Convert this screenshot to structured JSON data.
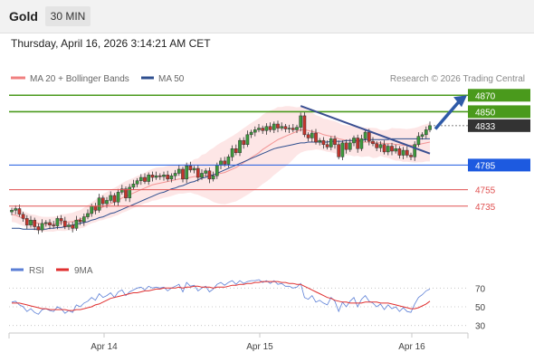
{
  "header": {
    "instrument": "Gold",
    "timeframe": "30 MIN",
    "datetime": "Thursday, April 16, 2026 3:14:21 AM CET"
  },
  "legend": {
    "ma20": "MA 20 + Bollinger Bands",
    "ma50": "MA 50",
    "research": "Research © 2026 Trading Central",
    "rsi": "RSI",
    "ma9": "9MA"
  },
  "colors": {
    "up_candle": "#3c9a3c",
    "down_candle": "#c4352c",
    "ma20": "#f08080",
    "ma50": "#2f4f8f",
    "bollinger_fill": "#fde3e3",
    "resistance": "#4a9a1c",
    "pivot": "#1d5ae0",
    "support": "#e05252",
    "last_price_tag": "#333333",
    "trendline": "#3a4f91",
    "rsi": "#5b7fd6",
    "rsi_ma9": "#e03030"
  },
  "chart_data": [
    {
      "type": "candlestick",
      "x_tick_labels": [
        "Apr 14",
        "Apr 15",
        "Apr 16"
      ],
      "y_price_tags": [
        4870,
        4850,
        4833,
        4785,
        4755,
        4735
      ],
      "levels": [
        {
          "label": "4870",
          "value": 4870,
          "kind": "resistance"
        },
        {
          "label": "4850",
          "value": 4850,
          "kind": "resistance"
        },
        {
          "label": "4833",
          "value": 4833,
          "kind": "last-price"
        },
        {
          "label": "4785",
          "value": 4785,
          "kind": "pivot"
        },
        {
          "label": "4755",
          "value": 4755,
          "kind": "support"
        },
        {
          "label": "4735",
          "value": 4735,
          "kind": "support"
        }
      ],
      "ylim": [
        4640,
        4878
      ],
      "close": [
        4730,
        4732,
        4725,
        4720,
        4712,
        4718,
        4710,
        4706,
        4714,
        4715,
        4712,
        4711,
        4720,
        4717,
        4710,
        4712,
        4708,
        4718,
        4716,
        4722,
        4726,
        4735,
        4730,
        4745,
        4738,
        4742,
        4748,
        4740,
        4752,
        4756,
        4745,
        4758,
        4762,
        4766,
        4770,
        4765,
        4773,
        4770,
        4772,
        4771,
        4773,
        4768,
        4772,
        4775,
        4780,
        4768,
        4784,
        4779,
        4781,
        4770,
        4775,
        4778,
        4768,
        4772,
        4785,
        4790,
        4786,
        4795,
        4805,
        4800,
        4815,
        4810,
        4822,
        4825,
        4828,
        4830,
        4827,
        4832,
        4828,
        4835,
        4830,
        4832,
        4829,
        4830,
        4828,
        4831,
        4845,
        4822,
        4818,
        4824,
        4813,
        4815,
        4810,
        4807,
        4817,
        4810,
        4795,
        4812,
        4804,
        4812,
        4818,
        4805,
        4817,
        4825,
        4814,
        4811,
        4806,
        4810,
        4801,
        4808,
        4802,
        4805,
        4797,
        4803,
        4797,
        4795,
        4810,
        4820,
        4822,
        4828,
        4833
      ],
      "bollinger_ma20": [
        4725,
        4724,
        4722,
        4720,
        4718,
        4716,
        4715,
        4714,
        4713,
        4713,
        4713,
        4713,
        4714,
        4715,
        4715,
        4716,
        4716,
        4718,
        4719,
        4721,
        4724,
        4727,
        4729,
        4732,
        4734,
        4736,
        4738,
        4740,
        4742,
        4745,
        4747,
        4749,
        4751,
        4753,
        4755,
        4757,
        4759,
        4761,
        4762,
        4763,
        4764,
        4765,
        4766,
        4767,
        4768,
        4768,
        4769,
        4770,
        4771,
        4771,
        4772,
        4772,
        4773,
        4773,
        4774,
        4775,
        4776,
        4778,
        4780,
        4782,
        4785,
        4788,
        4791,
        4794,
        4797,
        4800,
        4804,
        4807,
        4810,
        4813,
        4816,
        4818,
        4820,
        4822,
        4824,
        4826,
        4828,
        4828,
        4827,
        4826,
        4825,
        4824,
        4822,
        4821,
        4820,
        4819,
        4817,
        4816,
        4815,
        4815,
        4814,
        4814,
        4813,
        4813,
        4813,
        4812,
        4812,
        4812,
        4811,
        4811,
        4811,
        4810,
        4810,
        4809,
        4809,
        4809,
        4809,
        4810,
        4811,
        4812,
        4813
      ],
      "ma50": [
        4708,
        4708,
        4708,
        4707,
        4707,
        4707,
        4707,
        4707,
        4707,
        4707,
        4708,
        4708,
        4709,
        4709,
        4710,
        4711,
        4712,
        4713,
        4714,
        4715,
        4716,
        4718,
        4719,
        4721,
        4722,
        4724,
        4726,
        4727,
        4729,
        4731,
        4733,
        4735,
        4737,
        4739,
        4741,
        4743,
        4745,
        4747,
        4749,
        4751,
        4752,
        4754,
        4756,
        4757,
        4759,
        4760,
        4762,
        4764,
        4765,
        4767,
        4769,
        4770,
        4772,
        4773,
        4775,
        4777,
        4779,
        4781,
        4783,
        4785,
        4787,
        4789,
        4791,
        4793,
        4795,
        4797,
        4799,
        4801,
        4803,
        4805,
        4806,
        4807,
        4808,
        4809,
        4810,
        4811,
        4812,
        4812,
        4813,
        4813,
        4813,
        4813,
        4813,
        4813,
        4814,
        4814,
        4814,
        4814,
        4815,
        4815,
        4815,
        4815,
        4815,
        4816,
        4816,
        4816,
        4816,
        4816,
        4816,
        4816,
        4817,
        4817,
        4817,
        4817,
        4817,
        4817,
        4817,
        4817,
        4817,
        4817,
        4817
      ]
    },
    {
      "type": "line",
      "name": "RSI panel",
      "yticks": [
        70,
        50,
        30
      ],
      "ylim": [
        20,
        80
      ],
      "series": [
        {
          "name": "RSI",
          "values": [
            55,
            56,
            52,
            50,
            45,
            48,
            44,
            42,
            47,
            48,
            46,
            45,
            50,
            48,
            43,
            46,
            44,
            52,
            50,
            54,
            56,
            60,
            57,
            64,
            60,
            62,
            65,
            60,
            66,
            68,
            62,
            66,
            68,
            70,
            71,
            68,
            72,
            70,
            71,
            70,
            71,
            67,
            70,
            72,
            74,
            66,
            76,
            72,
            73,
            67,
            70,
            72,
            66,
            69,
            74,
            76,
            73,
            76,
            78,
            74,
            78,
            75,
            77,
            78,
            78,
            79,
            76,
            78,
            75,
            78,
            74,
            75,
            72,
            72,
            70,
            71,
            75,
            60,
            58,
            62,
            55,
            57,
            54,
            52,
            60,
            56,
            45,
            55,
            50,
            56,
            60,
            50,
            58,
            62,
            56,
            54,
            50,
            53,
            47,
            52,
            48,
            50,
            45,
            49,
            45,
            44,
            53,
            60,
            63,
            67,
            69
          ]
        },
        {
          "name": "9MA",
          "values": [
            54,
            54,
            54,
            53,
            52,
            51,
            50,
            49,
            48,
            48,
            47,
            47,
            47,
            47,
            47,
            46,
            46,
            47,
            47,
            48,
            49,
            50,
            52,
            53,
            55,
            57,
            59,
            60,
            61,
            62,
            63,
            64,
            65,
            65,
            66,
            67,
            67,
            68,
            69,
            69,
            70,
            70,
            70,
            70,
            71,
            70,
            71,
            71,
            72,
            72,
            71,
            71,
            71,
            70,
            71,
            71,
            71,
            72,
            73,
            73,
            74,
            74,
            75,
            75,
            76,
            76,
            77,
            77,
            77,
            77,
            77,
            76,
            76,
            75,
            75,
            74,
            74,
            72,
            70,
            68,
            66,
            64,
            62,
            60,
            59,
            57,
            56,
            55,
            55,
            54,
            54,
            54,
            54,
            55,
            55,
            55,
            55,
            54,
            54,
            54,
            53,
            52,
            51,
            50,
            49,
            48,
            48,
            49,
            51,
            53,
            56
          ]
        }
      ]
    }
  ]
}
